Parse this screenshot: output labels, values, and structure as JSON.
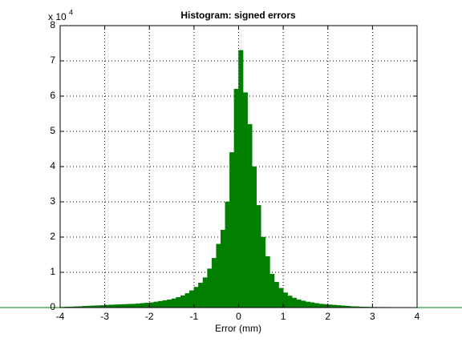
{
  "chart_data": {
    "type": "histogram",
    "title": "Histogram: signed errors",
    "x_label": "Error (mm)",
    "y_multiplier": "x 10",
    "y_multiplier_exponent": "4",
    "color": "#007f00",
    "grid": true,
    "bins": [
      -4,
      -3.9,
      -3.8,
      -3.7,
      -3.6,
      -3.5,
      -3.4,
      -3.3,
      -3.2,
      -3.1,
      -3,
      -2.9,
      -2.8,
      -2.7,
      -2.6,
      -2.5,
      -2.4,
      -2.3,
      -2.2,
      -2.1,
      -2,
      -1.9,
      -1.8,
      -1.7,
      -1.6,
      -1.5,
      -1.4,
      -1.3,
      -1.2,
      -1.1,
      -1,
      -0.9,
      -0.8,
      -0.7,
      -0.6,
      -0.5,
      -0.4,
      -0.3,
      -0.2,
      -0.1,
      0,
      0.1,
      0.2,
      0.3,
      0.4,
      0.5,
      0.6,
      0.7,
      0.8,
      0.9,
      1,
      1.1,
      1.2,
      1.3,
      1.4,
      1.5,
      1.6,
      1.7,
      1.8,
      1.9,
      2,
      2.1,
      2.2,
      2.3,
      2.4,
      2.5,
      2.6,
      2.7,
      2.8,
      2.9,
      3,
      3.1,
      3.2,
      3.3,
      3.4,
      3.5,
      3.6,
      3.7,
      3.8,
      3.9,
      4
    ],
    "values": [
      100,
      150,
      200,
      250,
      300,
      400,
      450,
      500,
      550,
      600,
      700,
      750,
      800,
      850,
      900,
      950,
      1000,
      1100,
      1200,
      1300,
      1400,
      1600,
      1800,
      2000,
      2200,
      2500,
      2900,
      3400,
      4000,
      4800,
      5800,
      7000,
      8500,
      11000,
      14000,
      18000,
      22000,
      30000,
      44000,
      62000,
      73000,
      61000,
      52000,
      40000,
      29000,
      20000,
      14500,
      9500,
      7200,
      5500,
      4200,
      3300,
      2700,
      2200,
      1900,
      1600,
      1400,
      1200,
      1000,
      900,
      800,
      700,
      600,
      500,
      400,
      300,
      250,
      200,
      150,
      120,
      100,
      90,
      80,
      70,
      60,
      50,
      40,
      30,
      20,
      10
    ],
    "xlim": [
      -4,
      4
    ],
    "xticks": [
      -4,
      -3,
      -2,
      -1,
      0,
      1,
      2,
      3,
      4
    ],
    "ylim": [
      0,
      80000
    ],
    "yticks": [
      {
        "value": 0,
        "label": "0"
      },
      {
        "value": 10000,
        "label": "1"
      },
      {
        "value": 20000,
        "label": "2"
      },
      {
        "value": 30000,
        "label": "3"
      },
      {
        "value": 40000,
        "label": "4"
      },
      {
        "value": 50000,
        "label": "5"
      },
      {
        "value": 60000,
        "label": "6"
      },
      {
        "value": 70000,
        "label": "7"
      },
      {
        "value": 80000,
        "label": "8"
      }
    ]
  }
}
